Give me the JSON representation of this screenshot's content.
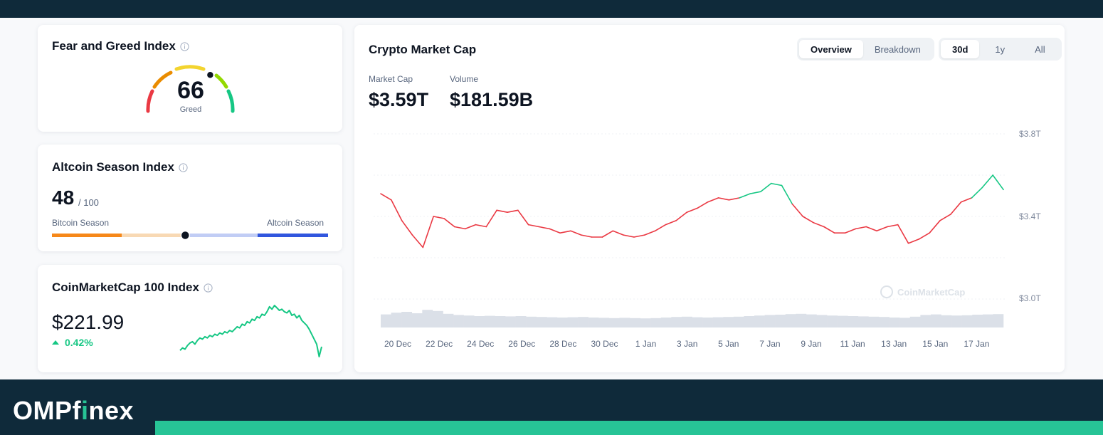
{
  "fear_greed": {
    "title": "Fear and Greed Index",
    "value": "66",
    "label": "Greed",
    "level": 0.66
  },
  "altcoin_season": {
    "title": "Altcoin Season Index",
    "value": "48",
    "max": "/ 100",
    "left_label": "Bitcoin Season",
    "right_label": "Altcoin Season",
    "level": 0.48
  },
  "cmc100": {
    "title": "CoinMarketCap 100 Index",
    "value": "$221.99",
    "change": "0.42%",
    "change_direction": "up",
    "sparkline": [
      205,
      207,
      206,
      209,
      211,
      212,
      210,
      213,
      215,
      214,
      216,
      215,
      217,
      216,
      218,
      217,
      219,
      218,
      220,
      219,
      221,
      220,
      222,
      224,
      223,
      226,
      225,
      228,
      227,
      230,
      229,
      232,
      231,
      234,
      233,
      236,
      240,
      238,
      241,
      239,
      237,
      238,
      236,
      235,
      237,
      233,
      234,
      231,
      233,
      229,
      227,
      225,
      222,
      218,
      214,
      210,
      200,
      208
    ]
  },
  "market_cap": {
    "title": "Crypto Market Cap",
    "tabs": [
      "Overview",
      "Breakdown"
    ],
    "active_tab": "Overview",
    "ranges": [
      "30d",
      "1y",
      "All"
    ],
    "active_range": "30d",
    "market_cap_label": "Market Cap",
    "market_cap_value": "$3.59T",
    "volume_label": "Volume",
    "volume_value": "$181.59B",
    "watermark": "CoinMarketCap"
  },
  "chart_data": {
    "type": "line",
    "title": "Crypto Market Cap",
    "y_unit": "T",
    "ylim": [
      3.0,
      3.8
    ],
    "y_ticks": [
      "$3.8T",
      "$3.4T",
      "$3.0T"
    ],
    "x_ticks": [
      "20 Dec",
      "22 Dec",
      "24 Dec",
      "26 Dec",
      "28 Dec",
      "30 Dec",
      "1 Jan",
      "3 Jan",
      "5 Jan",
      "7 Jan",
      "9 Jan",
      "11 Jan",
      "13 Jan",
      "15 Jan",
      "17 Jan"
    ],
    "baseline": 3.5,
    "colors": {
      "above": "#16c784",
      "below": "#ea3943"
    },
    "x": [
      "19 Dec",
      "20 Dec",
      "20 Dec",
      "21 Dec",
      "21 Dec",
      "22 Dec",
      "22 Dec",
      "23 Dec",
      "23 Dec",
      "24 Dec",
      "24 Dec",
      "25 Dec",
      "25 Dec",
      "26 Dec",
      "26 Dec",
      "27 Dec",
      "27 Dec",
      "28 Dec",
      "28 Dec",
      "29 Dec",
      "29 Dec",
      "30 Dec",
      "30 Dec",
      "31 Dec",
      "31 Dec",
      "1 Jan",
      "1 Jan",
      "2 Jan",
      "2 Jan",
      "3 Jan",
      "3 Jan",
      "4 Jan",
      "4 Jan",
      "5 Jan",
      "5 Jan",
      "6 Jan",
      "6 Jan",
      "7 Jan",
      "7 Jan",
      "8 Jan",
      "8 Jan",
      "9 Jan",
      "9 Jan",
      "10 Jan",
      "10 Jan",
      "11 Jan",
      "11 Jan",
      "12 Jan",
      "12 Jan",
      "13 Jan",
      "13 Jan",
      "14 Jan",
      "14 Jan",
      "15 Jan",
      "15 Jan",
      "16 Jan",
      "16 Jan",
      "17 Jan",
      "17 Jan",
      "18 Jan"
    ],
    "values": [
      3.51,
      3.48,
      3.38,
      3.31,
      3.25,
      3.4,
      3.39,
      3.35,
      3.34,
      3.36,
      3.35,
      3.43,
      3.42,
      3.43,
      3.36,
      3.35,
      3.34,
      3.32,
      3.33,
      3.31,
      3.3,
      3.3,
      3.33,
      3.31,
      3.3,
      3.31,
      3.33,
      3.36,
      3.38,
      3.42,
      3.44,
      3.47,
      3.49,
      3.48,
      3.49,
      3.51,
      3.52,
      3.56,
      3.55,
      3.46,
      3.4,
      3.37,
      3.35,
      3.32,
      3.32,
      3.34,
      3.35,
      3.33,
      3.35,
      3.36,
      3.27,
      3.29,
      3.32,
      3.38,
      3.41,
      3.47,
      3.49,
      3.54,
      3.6,
      3.53
    ],
    "volume": [
      0.46,
      0.52,
      0.55,
      0.5,
      0.62,
      0.58,
      0.48,
      0.44,
      0.42,
      0.4,
      0.41,
      0.4,
      0.39,
      0.4,
      0.38,
      0.37,
      0.36,
      0.35,
      0.36,
      0.37,
      0.35,
      0.34,
      0.33,
      0.34,
      0.33,
      0.32,
      0.33,
      0.35,
      0.37,
      0.38,
      0.36,
      0.35,
      0.36,
      0.37,
      0.38,
      0.4,
      0.42,
      0.44,
      0.45,
      0.47,
      0.48,
      0.46,
      0.44,
      0.42,
      0.41,
      0.4,
      0.39,
      0.38,
      0.37,
      0.35,
      0.34,
      0.38,
      0.44,
      0.46,
      0.43,
      0.42,
      0.43,
      0.45,
      0.46,
      0.47
    ]
  }
}
